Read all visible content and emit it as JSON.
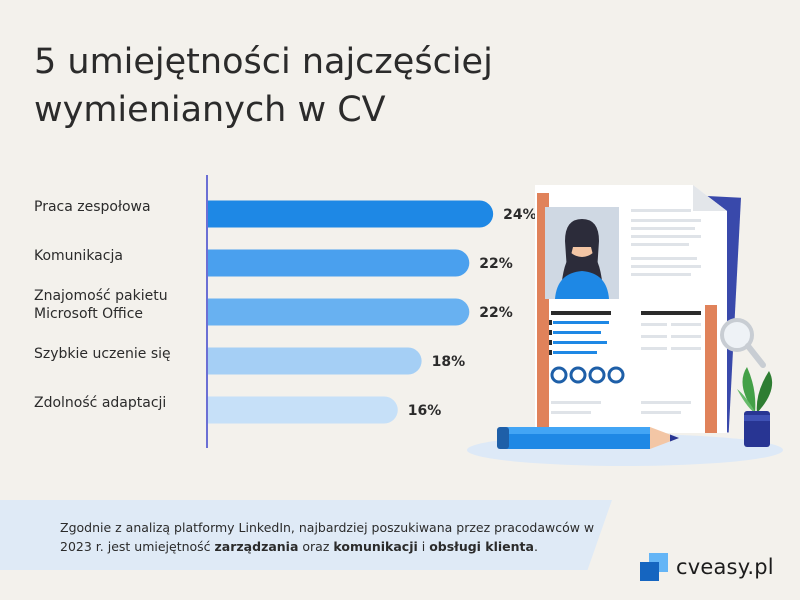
{
  "title": {
    "line1": "5 umiejętności najczęściej",
    "line2": "wymienianych w CV"
  },
  "chart_data": {
    "type": "bar",
    "orientation": "horizontal",
    "categories": [
      [
        "Praca zespołowa"
      ],
      [
        "Komunikacja"
      ],
      [
        "Znajomość pakietu",
        "Microsoft Office"
      ],
      [
        "Szybkie uczenie się"
      ],
      [
        "Zdolność adaptacji"
      ]
    ],
    "values": [
      24,
      22,
      22,
      18,
      16
    ],
    "value_labels": [
      "24%",
      "22%",
      "22%",
      "18%",
      "16%"
    ],
    "bar_colors": [
      "#1e88e5",
      "#4aa0ee",
      "#68b1f1",
      "#a5cff5",
      "#c6e0f8"
    ],
    "xlim": [
      0,
      26
    ],
    "title": "",
    "xlabel": "",
    "ylabel": ""
  },
  "footer": {
    "text_1": "Zgodnie z analizą platformy LinkedIn, najbardziej poszukiwana przez pracodawców w 2023 r. jest umiejętność ",
    "bold_1": "zarządzania",
    "text_2": " oraz ",
    "bold_2": "komunikacji",
    "text_3": " i ",
    "bold_3": "obsługi klienta",
    "text_4": "."
  },
  "brand": {
    "name": "cveasy.pl",
    "colors": {
      "dark": "#1565c0",
      "light": "#64b5f6"
    }
  },
  "illustration": {
    "icons": [
      "resume-document-icon",
      "person-avatar-icon",
      "pencil-icon",
      "magnifier-icon",
      "plant-icon"
    ]
  }
}
